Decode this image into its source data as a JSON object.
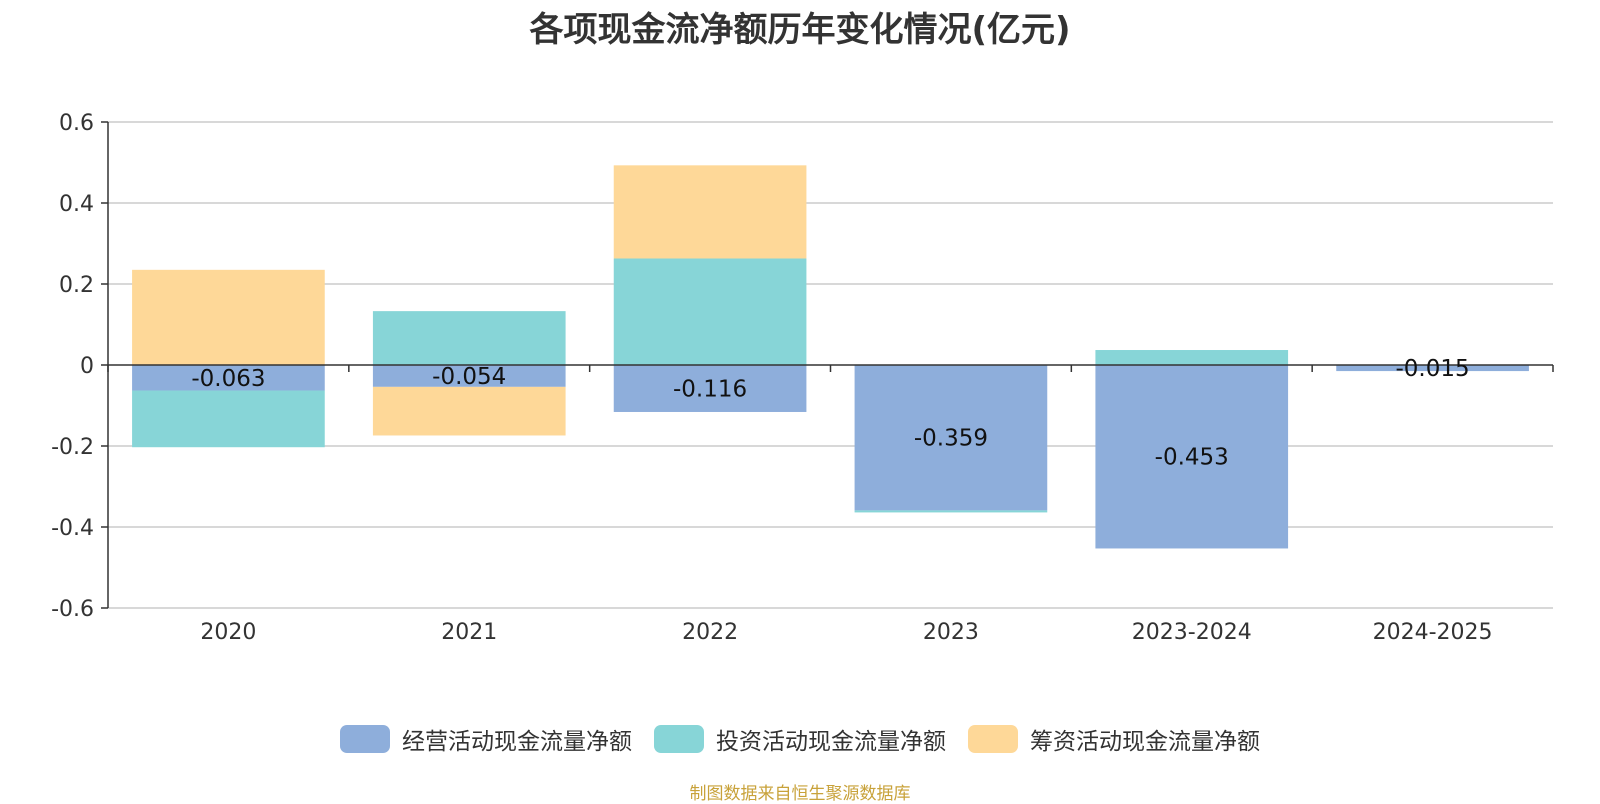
{
  "chart_data": {
    "type": "bar",
    "stacked": true,
    "title": "各项现金流净额历年变化情况(亿元)",
    "categories": [
      "2020",
      "2021",
      "2022",
      "2023",
      "2023-2024",
      "2024-2025"
    ],
    "series": [
      {
        "name": "经营活动现金流量净额",
        "color": "#8eaedb",
        "values": [
          -0.063,
          -0.054,
          -0.116,
          -0.359,
          -0.453,
          -0.015
        ]
      },
      {
        "name": "投资活动现金流量净额",
        "color": "#87d5d7",
        "values": [
          -0.14,
          0.133,
          0.263,
          -0.005,
          0.037,
          0
        ]
      },
      {
        "name": "筹资活动现金流量净额",
        "color": "#fed898",
        "values": [
          0.235,
          -0.12,
          0.23,
          0,
          0,
          0
        ]
      }
    ],
    "data_labels": [
      "-0.063",
      "-0.054",
      "-0.116",
      "-0.359",
      "-0.453",
      "-0.015"
    ],
    "y_ticks": [
      "0.6",
      "0.4",
      "0.2",
      "0",
      "-0.2",
      "-0.4",
      "-0.6"
    ],
    "ylim": [
      -0.6,
      0.6
    ],
    "xlabel": "",
    "ylabel": "",
    "legend_position": "bottom"
  },
  "source_note": "制图数据来自恒生聚源数据库"
}
